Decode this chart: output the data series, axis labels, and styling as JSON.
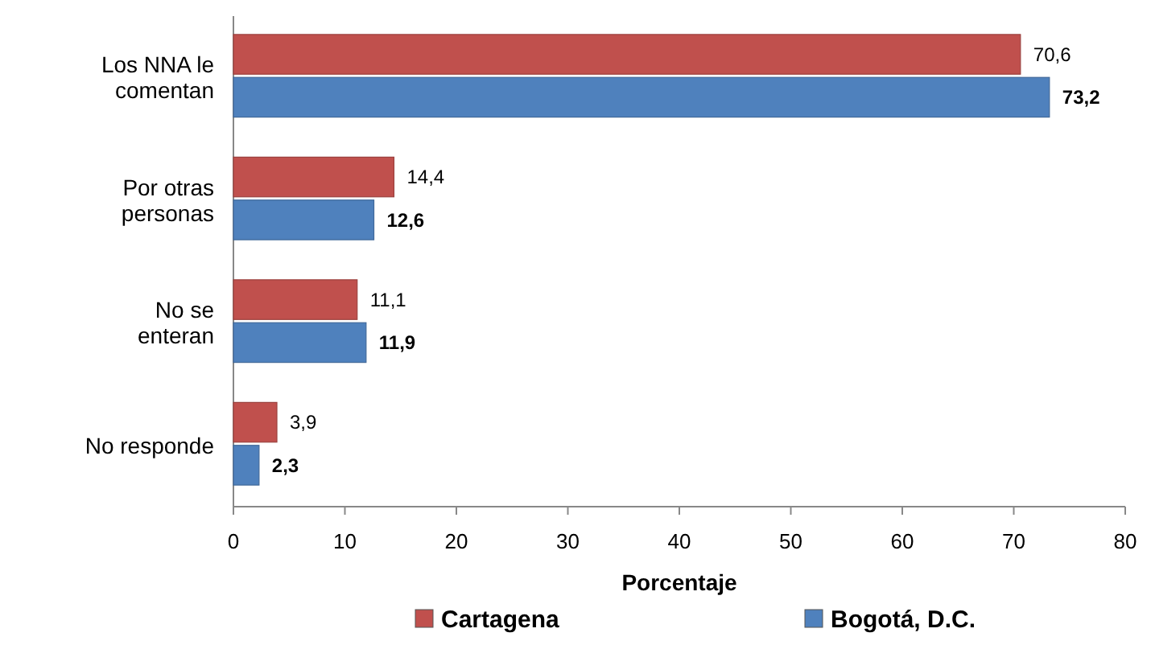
{
  "chart_data": {
    "type": "bar",
    "orientation": "horizontal",
    "categories": [
      "Los NNA le comentan",
      "Por otras personas",
      "No se enteran",
      "No responde"
    ],
    "series": [
      {
        "name": "Cartagena",
        "color": "#c0504d",
        "values": [
          70.6,
          14.4,
          11.1,
          3.9
        ],
        "value_labels": [
          "70,6",
          "14,4",
          "11,1",
          "3,9"
        ]
      },
      {
        "name": "Bogotá, D.C.",
        "color": "#4f81bd",
        "values": [
          73.2,
          12.6,
          11.9,
          2.3
        ],
        "value_labels": [
          "73,2",
          "12,6",
          "11,9",
          "2,3"
        ]
      }
    ],
    "xlim": [
      0,
      80
    ],
    "xticks": [
      0,
      10,
      20,
      30,
      40,
      50,
      60,
      70,
      80
    ],
    "xlabel": "Porcentaje",
    "legend": "bottom",
    "grid": false
  }
}
